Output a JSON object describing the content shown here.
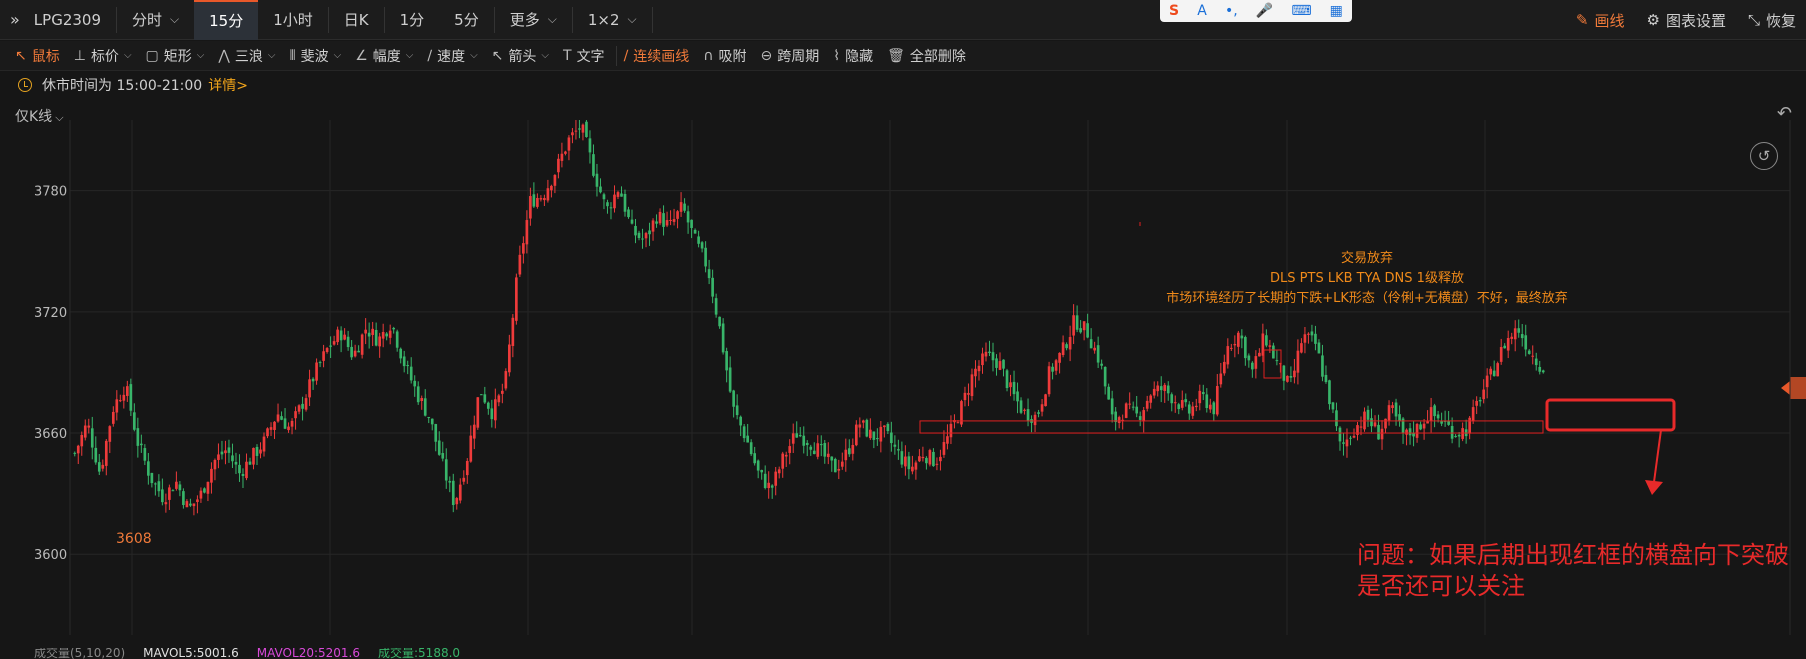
{
  "topbar": {
    "symbol": "LPG2309",
    "tabs": [
      {
        "label": "分时",
        "chev": "⌵"
      },
      {
        "label": "15分"
      },
      {
        "label": "1小时"
      },
      {
        "label": "日K"
      },
      {
        "label": "1分"
      },
      {
        "label": "5分"
      },
      {
        "label": "更多",
        "chev": "⌵"
      },
      {
        "label": "1×2",
        "chev": "⌵"
      }
    ],
    "active_tab": "15分",
    "right": {
      "draw": "画线",
      "settings": "图表设置",
      "restore": "恢复"
    }
  },
  "ime": {
    "logo": "S",
    "a": "A",
    "dots": "•,",
    "mic": "🎤",
    "kbd": "⌨",
    "grid": "▦"
  },
  "drawbar": {
    "tools": [
      {
        "label": "鼠标",
        "icon": "↖",
        "on": true
      },
      {
        "label": "标价",
        "icon": "⊥",
        "chev": "⌵"
      },
      {
        "label": "矩形",
        "icon": "▢",
        "chev": "⌵"
      },
      {
        "label": "三浪",
        "icon": "⋀",
        "chev": "⌵"
      },
      {
        "label": "斐波",
        "icon": "⦀",
        "chev": "⌵"
      },
      {
        "label": "幅度",
        "icon": "∠",
        "chev": "⌵"
      },
      {
        "label": "速度",
        "icon": "∕",
        "chev": "⌵"
      },
      {
        "label": "箭头",
        "icon": "↖",
        "chev": "⌵"
      },
      {
        "label": "文字",
        "icon": "T"
      },
      {
        "label": "连续画线",
        "icon": "∕",
        "on": true
      },
      {
        "label": "吸附",
        "icon": "∩"
      },
      {
        "label": "跨周期",
        "icon": "⊖"
      },
      {
        "label": "隐藏",
        "icon": "⌇"
      },
      {
        "label": "全部删除",
        "icon": "🗑"
      }
    ]
  },
  "notice": {
    "text": "休市时间为 15:00-21:00",
    "detail": "详情>"
  },
  "kfilter": {
    "label": "仅K线",
    "chev": "⌵"
  },
  "colors": {
    "up": "#ee3b3b",
    "down": "#38b56a",
    "accent": "#e8582a",
    "annotation": "#f08a1a",
    "bg": "#161616"
  },
  "chart_data": {
    "type": "candlestick",
    "symbol": "LPG2309",
    "interval": "15分",
    "yticks": [
      3780,
      3720,
      3660,
      3600
    ],
    "ylim": [
      3560,
      3815
    ],
    "low_label": "3608",
    "close_trace": [
      3650,
      3665,
      3640,
      3672,
      3684,
      3655,
      3638,
      3628,
      3636,
      3622,
      3630,
      3646,
      3652,
      3640,
      3648,
      3656,
      3670,
      3662,
      3675,
      3690,
      3702,
      3710,
      3698,
      3712,
      3706,
      3715,
      3695,
      3680,
      3668,
      3645,
      3625,
      3648,
      3682,
      3670,
      3684,
      3740,
      3775,
      3778,
      3790,
      3805,
      3812,
      3790,
      3770,
      3782,
      3760,
      3755,
      3768,
      3762,
      3772,
      3755,
      3742,
      3710,
      3672,
      3658,
      3640,
      3632,
      3648,
      3660,
      3656,
      3650,
      3642,
      3650,
      3665,
      3658,
      3660,
      3650,
      3642,
      3650,
      3646,
      3658,
      3672,
      3690,
      3698,
      3695,
      3680,
      3670,
      3668,
      3690,
      3700,
      3716,
      3710,
      3695,
      3665,
      3672,
      3668,
      3680,
      3682,
      3676,
      3670,
      3678,
      3672,
      3702,
      3710,
      3690,
      3708,
      3694,
      3682,
      3708,
      3704,
      3680,
      3652,
      3662,
      3668,
      3660,
      3672,
      3658,
      3662,
      3670,
      3666,
      3660,
      3662,
      3678,
      3690,
      3705,
      3712,
      3700,
      3692
    ],
    "levels": {
      "box_top": 3666,
      "box_bottom": 3660
    },
    "annotation": {
      "title": "交易放弃",
      "line1": "DLS PTS LKB  TYA DNS  1级释放",
      "line2": "市场环境经历了长期的下跌+LK形态（伶俐+无横盘）不好，最终放弃"
    },
    "question": "问题：如果后期出现红框的横盘向下突破是否还可以关注"
  },
  "volume": {
    "label": "成交量(5,10,20)",
    "mavol5": "MAVOL5:5001.6",
    "mavol20": "MAVOL20:5201.6",
    "vol": "成交量:5188.0"
  }
}
